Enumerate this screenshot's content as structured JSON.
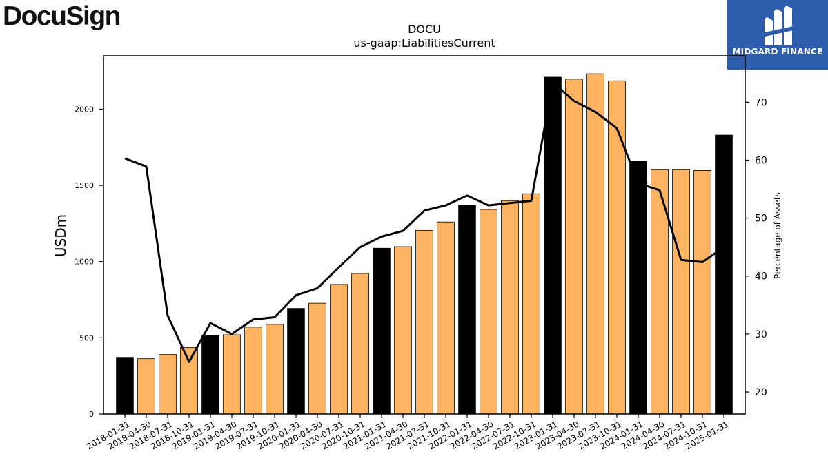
{
  "brand": {
    "company_logo_text": "DocuSign",
    "partner_logo_text": "MIDGARD FINANCE"
  },
  "colors": {
    "bar_normal": "#fdb462",
    "bar_highlight": "#000000",
    "line": "#000000",
    "partner_bg": "#2f5dad"
  },
  "chart_data": {
    "type": "bar",
    "title": "DOCU",
    "subtitle": "us-gaap:LiabilitiesCurrent",
    "ylabel": "USDm",
    "y2label": "Percentage of Assets",
    "ylim": [
      0,
      2350
    ],
    "y2lim": [
      16.2,
      78
    ],
    "yticks": [
      0,
      500,
      1000,
      1500,
      2000
    ],
    "y2ticks": [
      20,
      30,
      40,
      50,
      60,
      70
    ],
    "grid": false,
    "categories": [
      "2018-01-31",
      "2018-04-30",
      "2018-07-31",
      "2018-10-31",
      "2019-01-31",
      "2019-04-30",
      "2019-07-31",
      "2019-10-31",
      "2020-01-31",
      "2020-04-30",
      "2020-07-31",
      "2020-10-31",
      "2021-01-31",
      "2021-04-30",
      "2021-07-31",
      "2021-10-31",
      "2022-01-31",
      "2022-04-30",
      "2022-07-31",
      "2022-10-31",
      "2023-01-31",
      "2023-04-30",
      "2023-07-31",
      "2023-10-31",
      "2024-01-31",
      "2024-04-30",
      "2024-07-31",
      "2024-10-31",
      "2025-01-31"
    ],
    "series": [
      {
        "values": [
          372,
          363,
          390,
          437,
          515,
          520,
          570,
          588,
          693,
          727,
          850,
          922,
          1088,
          1098,
          1205,
          1260,
          1368,
          1342,
          1400,
          1445,
          2210,
          2197,
          2232,
          2186,
          1658,
          1603,
          1603,
          1598,
          1830
        ],
        "highlight": [
          true,
          false,
          false,
          false,
          true,
          false,
          false,
          false,
          true,
          false,
          false,
          false,
          true,
          false,
          false,
          false,
          true,
          false,
          false,
          false,
          true,
          false,
          false,
          false,
          true,
          false,
          false,
          false,
          true
        ],
        "axis": "left"
      },
      {
        "values": [
          60.3,
          58.9,
          33.2,
          25.2,
          31.9,
          30.0,
          32.5,
          32.9,
          36.7,
          37.9,
          41.5,
          45.0,
          46.8,
          47.8,
          51.3,
          52.2,
          53.9,
          52.2,
          52.6,
          53.0,
          73.4,
          70.2,
          68.3,
          65.5,
          56.0,
          54.8,
          42.8,
          42.4,
          45.0
        ],
        "axis": "right",
        "type": "line"
      }
    ]
  }
}
